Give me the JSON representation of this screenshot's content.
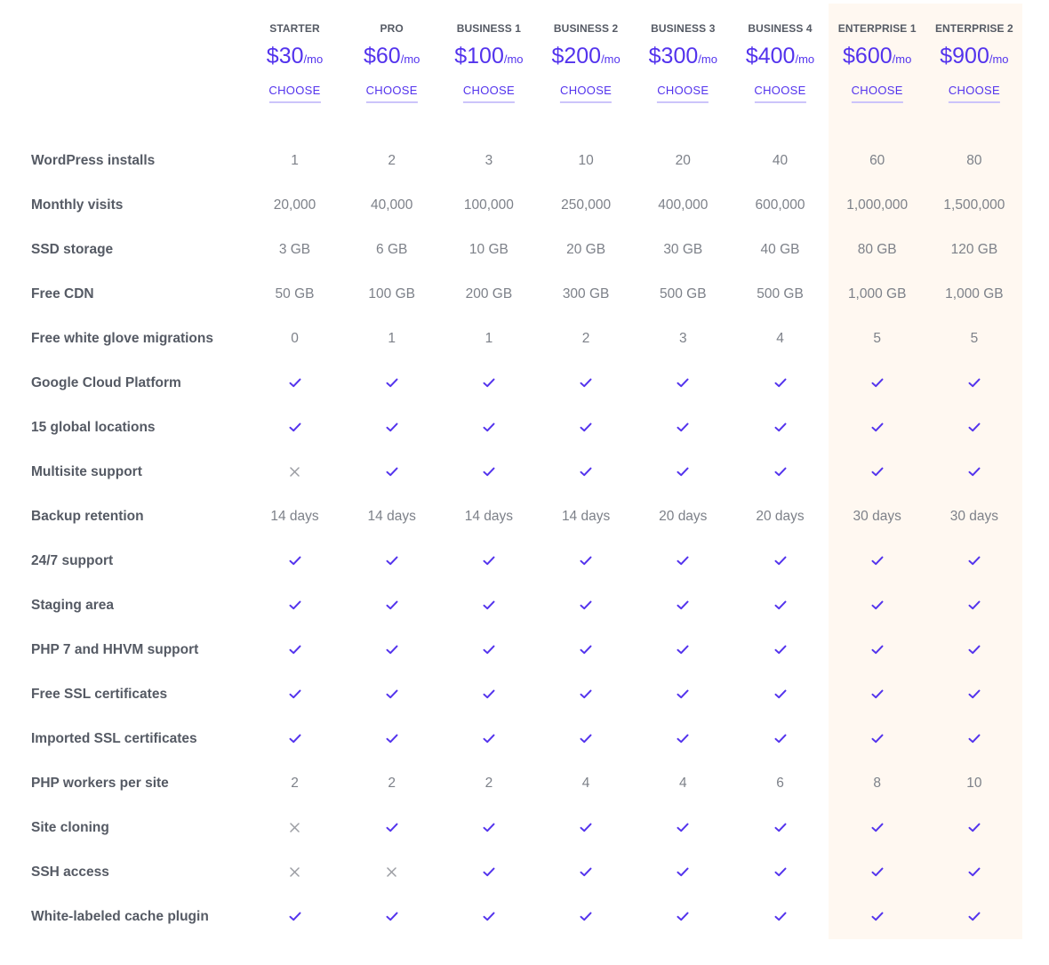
{
  "plans": [
    {
      "name": "STARTER",
      "price": "$30",
      "unit": "/mo",
      "cta": "CHOOSE"
    },
    {
      "name": "PRO",
      "price": "$60",
      "unit": "/mo",
      "cta": "CHOOSE"
    },
    {
      "name": "BUSINESS 1",
      "price": "$100",
      "unit": "/mo",
      "cta": "CHOOSE"
    },
    {
      "name": "BUSINESS 2",
      "price": "$200",
      "unit": "/mo",
      "cta": "CHOOSE"
    },
    {
      "name": "BUSINESS 3",
      "price": "$300",
      "unit": "/mo",
      "cta": "CHOOSE"
    },
    {
      "name": "BUSINESS 4",
      "price": "$400",
      "unit": "/mo",
      "cta": "CHOOSE"
    },
    {
      "name": "ENTERPRISE 1",
      "price": "$600",
      "unit": "/mo",
      "cta": "CHOOSE"
    },
    {
      "name": "ENTERPRISE 2",
      "price": "$900",
      "unit": "/mo",
      "cta": "CHOOSE"
    }
  ],
  "colors": {
    "accent": "#5333ed",
    "label": "#555a64",
    "value": "#7d8189",
    "cross": "#9b9da3",
    "enterprise_bg": "#fff8f1"
  },
  "features": [
    {
      "label": "WordPress installs",
      "values": [
        "1",
        "2",
        "3",
        "10",
        "20",
        "40",
        "60",
        "80"
      ]
    },
    {
      "label": "Monthly visits",
      "values": [
        "20,000",
        "40,000",
        "100,000",
        "250,000",
        "400,000",
        "600,000",
        "1,000,000",
        "1,500,000"
      ]
    },
    {
      "label": "SSD storage",
      "values": [
        "3 GB",
        "6 GB",
        "10 GB",
        "20 GB",
        "30 GB",
        "40 GB",
        "80 GB",
        "120 GB"
      ]
    },
    {
      "label": "Free CDN",
      "values": [
        "50 GB",
        "100 GB",
        "200 GB",
        "300 GB",
        "500 GB",
        "500 GB",
        "1,000 GB",
        "1,000 GB"
      ]
    },
    {
      "label": "Free white glove migrations",
      "values": [
        "0",
        "1",
        "1",
        "2",
        "3",
        "4",
        "5",
        "5"
      ]
    },
    {
      "label": "Google Cloud Platform",
      "values": [
        true,
        true,
        true,
        true,
        true,
        true,
        true,
        true
      ]
    },
    {
      "label": "15 global locations",
      "values": [
        true,
        true,
        true,
        true,
        true,
        true,
        true,
        true
      ]
    },
    {
      "label": "Multisite support",
      "values": [
        false,
        true,
        true,
        true,
        true,
        true,
        true,
        true
      ]
    },
    {
      "label": "Backup retention",
      "values": [
        "14 days",
        "14 days",
        "14 days",
        "14 days",
        "20 days",
        "20 days",
        "30 days",
        "30 days"
      ]
    },
    {
      "label": "24/7 support",
      "values": [
        true,
        true,
        true,
        true,
        true,
        true,
        true,
        true
      ]
    },
    {
      "label": "Staging area",
      "values": [
        true,
        true,
        true,
        true,
        true,
        true,
        true,
        true
      ]
    },
    {
      "label": "PHP 7 and HHVM support",
      "values": [
        true,
        true,
        true,
        true,
        true,
        true,
        true,
        true
      ]
    },
    {
      "label": "Free SSL certificates",
      "values": [
        true,
        true,
        true,
        true,
        true,
        true,
        true,
        true
      ]
    },
    {
      "label": "Imported SSL certificates",
      "values": [
        true,
        true,
        true,
        true,
        true,
        true,
        true,
        true
      ]
    },
    {
      "label": "PHP workers per site",
      "values": [
        "2",
        "2",
        "2",
        "4",
        "4",
        "6",
        "8",
        "10"
      ]
    },
    {
      "label": "Site cloning",
      "values": [
        false,
        true,
        true,
        true,
        true,
        true,
        true,
        true
      ]
    },
    {
      "label": "SSH access",
      "values": [
        false,
        false,
        true,
        true,
        true,
        true,
        true,
        true
      ]
    },
    {
      "label": "White-labeled cache plugin",
      "values": [
        true,
        true,
        true,
        true,
        true,
        true,
        true,
        true
      ]
    }
  ]
}
